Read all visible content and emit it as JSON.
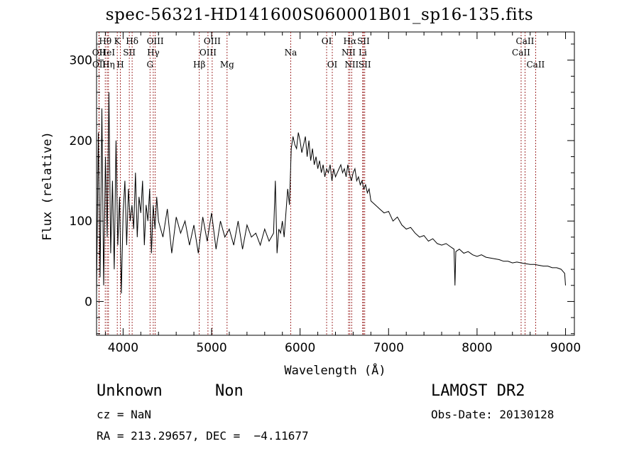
{
  "title": "spec-56321-HD141600S060001B01_sp16-135.fits",
  "info": {
    "class": "Unknown",
    "subclass": "Non",
    "survey": "LAMOST DR2",
    "cz": "cz = NaN",
    "obs_date": "Obs-Date: 20130128",
    "radec": "RA = 213.29657, DEC =  −4.11677"
  },
  "chart_data": {
    "type": "line",
    "xlabel": "Wavelength (Å)",
    "ylabel": "Flux (relative)",
    "xlim": [
      3700,
      9100
    ],
    "ylim": [
      -42,
      335
    ],
    "xticks": [
      4000,
      5000,
      6000,
      7000,
      8000,
      9000
    ],
    "yticks": [
      0,
      100,
      200,
      300
    ],
    "grid": false,
    "line_color": "#000000",
    "marker_color": "#8b0000",
    "lines": [
      {
        "label": "OII",
        "x": 3727,
        "row": 1
      },
      {
        "label": "OII",
        "x": 3729,
        "row": 2
      },
      {
        "label": "Hθ",
        "x": 3798,
        "row": 0
      },
      {
        "label": "HeI",
        "x": 3820,
        "row": 1
      },
      {
        "label": "Hη",
        "x": 3835,
        "row": 2
      },
      {
        "label": "K",
        "x": 3934,
        "row": 0
      },
      {
        "label": "H",
        "x": 3969,
        "row": 2
      },
      {
        "label": "SII",
        "x": 4070,
        "row": 1
      },
      {
        "label": "Hδ",
        "x": 4102,
        "row": 0
      },
      {
        "label": "G",
        "x": 4304,
        "row": 2
      },
      {
        "label": "Hγ",
        "x": 4341,
        "row": 1
      },
      {
        "label": "OIII",
        "x": 4363,
        "row": 0
      },
      {
        "label": "Hβ",
        "x": 4861,
        "row": 2
      },
      {
        "label": "OIII",
        "x": 4959,
        "row": 1
      },
      {
        "label": "OIII",
        "x": 5007,
        "row": 0
      },
      {
        "label": "Mg",
        "x": 5175,
        "row": 2
      },
      {
        "label": "Na",
        "x": 5894,
        "row": 1
      },
      {
        "label": "OI",
        "x": 6300,
        "row": 0
      },
      {
        "label": "OI",
        "x": 6364,
        "row": 2
      },
      {
        "label": "NII",
        "x": 6548,
        "row": 1
      },
      {
        "label": "Hα",
        "x": 6563,
        "row": 0
      },
      {
        "label": "NII",
        "x": 6583,
        "row": 2
      },
      {
        "label": "Li",
        "x": 6708,
        "row": 1
      },
      {
        "label": "SII",
        "x": 6716,
        "row": 0
      },
      {
        "label": "SII",
        "x": 6731,
        "row": 2
      },
      {
        "label": "CaII",
        "x": 8498,
        "row": 1
      },
      {
        "label": "CaII",
        "x": 8542,
        "row": 0
      },
      {
        "label": "CaII",
        "x": 8662,
        "row": 2
      }
    ],
    "series": [
      {
        "x": [
          3700,
          3720,
          3740,
          3760,
          3780,
          3800,
          3820,
          3840,
          3860,
          3880,
          3900,
          3920,
          3940,
          3960,
          3980,
          4000,
          4020,
          4040,
          4060,
          4080,
          4100,
          4120,
          4140,
          4160,
          4180,
          4200,
          4220,
          4240,
          4260,
          4280,
          4300,
          4320,
          4340,
          4360,
          4380,
          4400,
          4450,
          4500,
          4550,
          4600,
          4650,
          4700,
          4750,
          4800,
          4850,
          4900,
          4950,
          5000,
          5050,
          5100,
          5150,
          5200,
          5250,
          5300,
          5350,
          5400,
          5450,
          5500,
          5550,
          5600,
          5650,
          5700,
          5720,
          5740,
          5760,
          5780,
          5800,
          5820,
          5840,
          5860,
          5880,
          5900,
          5920,
          5940,
          5960,
          5980,
          6000,
          6020,
          6040,
          6060,
          6080,
          6100,
          6120,
          6140,
          6160,
          6180,
          6200,
          6220,
          6240,
          6260,
          6280,
          6300,
          6320,
          6340,
          6360,
          6380,
          6400,
          6420,
          6440,
          6460,
          6480,
          6500,
          6520,
          6540,
          6560,
          6580,
          6600,
          6620,
          6640,
          6660,
          6680,
          6700,
          6720,
          6740,
          6760,
          6780,
          6800,
          6850,
          6900,
          6950,
          7000,
          7050,
          7100,
          7150,
          7200,
          7250,
          7300,
          7350,
          7400,
          7450,
          7500,
          7550,
          7600,
          7650,
          7700,
          7740,
          7750,
          7760,
          7800,
          7850,
          7900,
          7950,
          8000,
          8050,
          8100,
          8150,
          8200,
          8250,
          8300,
          8350,
          8400,
          8450,
          8500,
          8550,
          8600,
          8650,
          8700,
          8750,
          8800,
          8850,
          8900,
          8950,
          8990,
          9000
        ],
        "y": [
          10,
          210,
          30,
          240,
          20,
          180,
          80,
          260,
          60,
          150,
          40,
          200,
          70,
          130,
          10,
          110,
          150,
          70,
          140,
          100,
          120,
          90,
          160,
          80,
          130,
          110,
          150,
          70,
          120,
          100,
          140,
          60,
          120,
          90,
          130,
          100,
          80,
          115,
          60,
          105,
          85,
          100,
          70,
          95,
          60,
          105,
          75,
          110,
          65,
          100,
          80,
          90,
          70,
          100,
          65,
          95,
          80,
          85,
          70,
          90,
          75,
          85,
          150,
          60,
          90,
          85,
          100,
          80,
          110,
          140,
          120,
          190,
          205,
          195,
          190,
          210,
          200,
          185,
          195,
          205,
          180,
          200,
          175,
          190,
          170,
          180,
          165,
          175,
          160,
          170,
          155,
          165,
          160,
          170,
          150,
          165,
          155,
          160,
          165,
          170,
          160,
          165,
          155,
          170,
          158,
          150,
          160,
          165,
          150,
          155,
          145,
          150,
          140,
          145,
          135,
          140,
          125,
          120,
          115,
          110,
          112,
          100,
          105,
          95,
          90,
          92,
          85,
          80,
          82,
          75,
          78,
          72,
          70,
          72,
          68,
          65,
          20,
          62,
          65,
          60,
          62,
          58,
          56,
          58,
          55,
          54,
          53,
          52,
          50,
          50,
          48,
          49,
          48,
          47,
          46,
          46,
          45,
          44,
          44,
          42,
          42,
          40,
          35,
          20
        ]
      }
    ]
  }
}
